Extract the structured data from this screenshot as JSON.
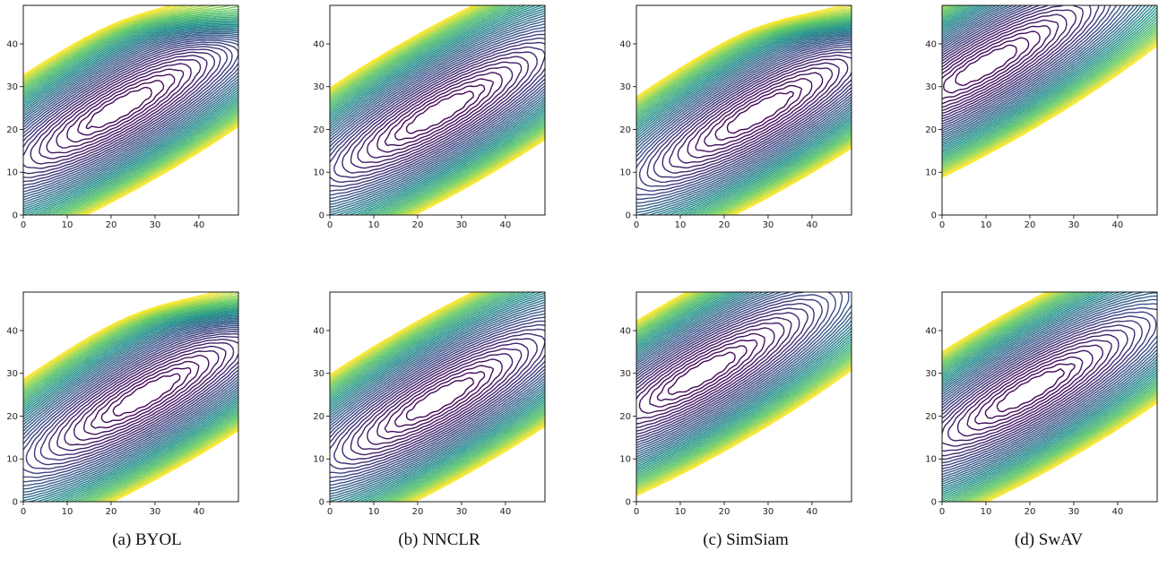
{
  "chart_data": {
    "type": "contour",
    "layout": "2x4 grid of contour plots",
    "xlim": [
      0,
      49
    ],
    "ylim": [
      0,
      49
    ],
    "x_ticks": [
      0,
      10,
      20,
      30,
      40
    ],
    "y_ticks": [
      0,
      10,
      20,
      30,
      40
    ],
    "colormap": [
      "#440154",
      "#3b528b",
      "#21918c",
      "#5ec962",
      "#fde725"
    ],
    "grid": false,
    "columns": [
      {
        "caption": "(a) BYOL",
        "panels": [
          {
            "row": "top",
            "min_center": [
              22,
              25
            ],
            "level_count": 40,
            "bright_corner": "top-right"
          },
          {
            "row": "bottom",
            "min_center": [
              28,
              25
            ],
            "level_count": 40,
            "bright_corner": "top-right"
          }
        ]
      },
      {
        "caption": "(b) NNCLR",
        "panels": [
          {
            "row": "top",
            "min_center": [
              25,
              24
            ],
            "level_count": 40,
            "bright_corner": "none"
          },
          {
            "row": "bottom",
            "min_center": [
              25,
              24
            ],
            "level_count": 40,
            "bright_corner": "none"
          }
        ]
      },
      {
        "caption": "(c) SimSiam",
        "panels": [
          {
            "row": "top",
            "min_center": [
              28,
              24
            ],
            "level_count": 40,
            "bright_corner": "top-right"
          },
          {
            "row": "bottom",
            "min_center": [
              15,
              30
            ],
            "level_count": 40,
            "bright_corner": "none"
          }
        ]
      },
      {
        "caption": "(d) SwAV",
        "panels": [
          {
            "row": "top",
            "min_center": [
              10,
              35
            ],
            "level_count": 40,
            "bright_corner": "none"
          },
          {
            "row": "bottom",
            "min_center": [
              20,
              26
            ],
            "level_count": 40,
            "bright_corner": "none"
          }
        ]
      }
    ]
  }
}
